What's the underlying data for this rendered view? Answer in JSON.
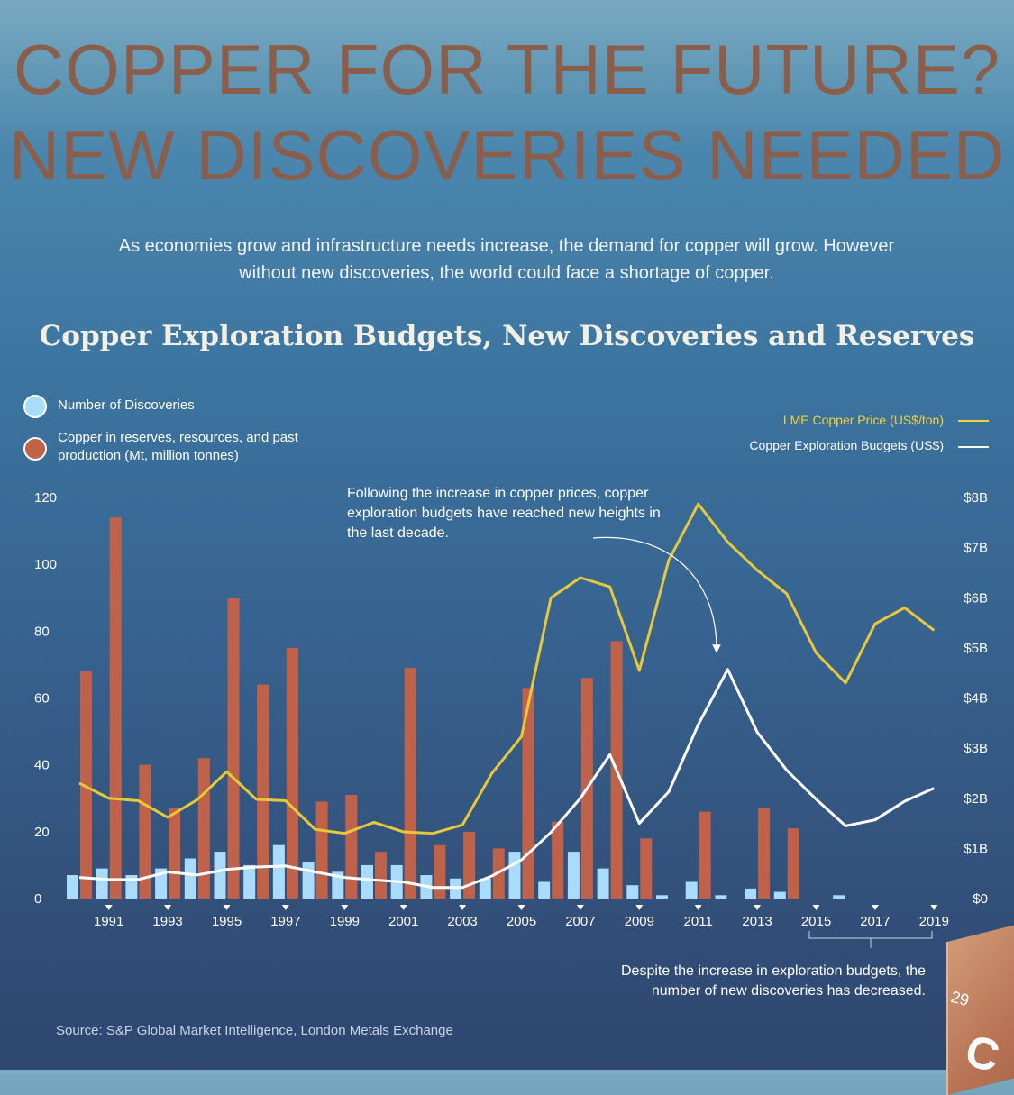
{
  "header": {
    "title_line1": "COPPER FOR THE FUTURE?",
    "title_line2": "NEW DISCOVERIES NEEDED",
    "intro": "As economies grow and infrastructure needs increase, the demand for copper will grow. However without new discoveries, the world could face a shortage of copper."
  },
  "legend": {
    "discoveries": "Number of Discoveries",
    "reserves": "Copper in reserves, resources, and past production (Mt, million tonnes)",
    "price": "LME Copper Price (US$/ton)",
    "budgets": "Copper Exploration  Budgets (US$)"
  },
  "annotations": {
    "note1": "Following the increase in copper prices, copper exploration budgets have reached new heights in the last decade.",
    "note2": "Despite the increase in exploration budgets, the number of new discoveries has decreased."
  },
  "source": "Source: S&P Global Market Intelligence, London Metals Exchange",
  "box": {
    "number": "29",
    "symbol": "C"
  },
  "colors": {
    "discoveries": "#a9dcfb",
    "reserves": "#c0624a",
    "price": "#e6c83a",
    "budgets": "#ffffff",
    "title": "#8a5e4b"
  },
  "chart_data": {
    "type": "bar",
    "title": "Copper Exploration Budgets, New Discoveries and Reserves",
    "years": [
      1990,
      1991,
      1992,
      1993,
      1994,
      1995,
      1996,
      1997,
      1998,
      1999,
      2000,
      2001,
      2002,
      2003,
      2004,
      2005,
      2006,
      2007,
      2008,
      2009,
      2010,
      2011,
      2012,
      2013,
      2014,
      2015,
      2016,
      2017,
      2018,
      2019
    ],
    "x_tick_labels": [
      "1991",
      "1993",
      "1995",
      "1997",
      "1999",
      "2001",
      "2003",
      "2005",
      "2007",
      "2009",
      "2011",
      "2013",
      "2015",
      "2017",
      "2019"
    ],
    "left_axis": {
      "ylim": [
        0,
        120
      ],
      "ticks": [
        "0",
        "20",
        "40",
        "60",
        "80",
        "100",
        "120"
      ]
    },
    "right_axis": {
      "ylim": [
        0,
        8
      ],
      "ticks": [
        "$0",
        "$1B",
        "$2B",
        "$3B",
        "$4B",
        "$5B",
        "$6B",
        "$7B",
        "$8B"
      ]
    },
    "series": [
      {
        "name": "Number of Discoveries",
        "type": "bar",
        "axis": "left",
        "values": [
          7,
          9,
          7,
          9,
          12,
          14,
          10,
          16,
          11,
          8,
          10,
          10,
          7,
          6,
          6,
          14,
          5,
          14,
          9,
          4,
          1,
          5,
          1,
          3,
          2,
          0,
          1,
          0,
          0,
          0
        ]
      },
      {
        "name": "Copper in reserves, resources, and past production (Mt, million tonnes)",
        "type": "bar",
        "axis": "left",
        "values": [
          68,
          114,
          40,
          27,
          42,
          90,
          64,
          75,
          29,
          31,
          14,
          69,
          16,
          20,
          15,
          63,
          23,
          66,
          77,
          18,
          0,
          26,
          0,
          27,
          21,
          0,
          0,
          0,
          0,
          0
        ]
      },
      {
        "name": "LME Copper Price (US$/ton)",
        "type": "line",
        "axis": "right",
        "values": [
          2.3,
          2.0,
          1.95,
          1.62,
          1.97,
          2.53,
          1.98,
          1.95,
          1.38,
          1.3,
          1.52,
          1.33,
          1.3,
          1.47,
          2.5,
          3.23,
          6.0,
          6.4,
          6.22,
          4.55,
          6.75,
          7.87,
          7.11,
          6.55,
          6.08,
          4.9,
          4.3,
          5.48,
          5.8,
          5.35
        ]
      },
      {
        "name": "Copper Exploration  Budgets (US$)",
        "type": "line",
        "axis": "right",
        "values": [
          0.42,
          0.38,
          0.38,
          0.53,
          0.47,
          0.58,
          0.63,
          0.65,
          0.53,
          0.42,
          0.37,
          0.33,
          0.22,
          0.22,
          0.45,
          0.77,
          1.32,
          2.0,
          2.87,
          1.5,
          2.13,
          3.47,
          4.57,
          3.32,
          2.56,
          1.98,
          1.45,
          1.57,
          1.94,
          2.2
        ]
      }
    ]
  }
}
